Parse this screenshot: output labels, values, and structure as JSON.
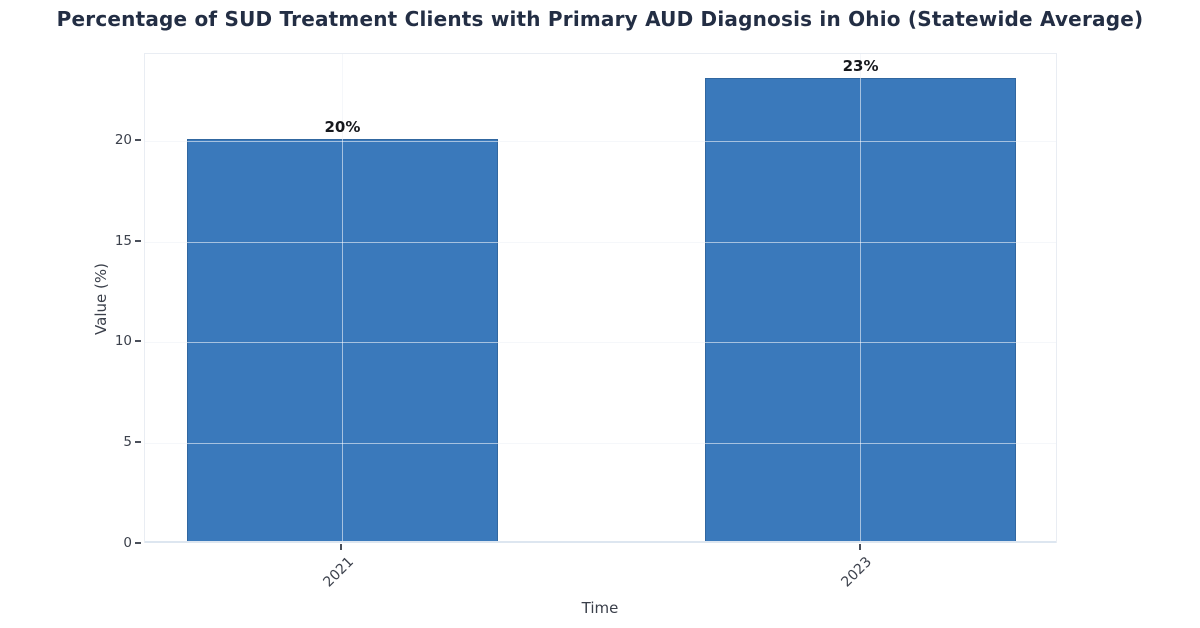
{
  "chart_data": {
    "type": "bar",
    "title": "Percentage of SUD Treatment Clients with Primary AUD Diagnosis in Ohio (Statewide Average)",
    "categories": [
      "2021",
      "2023"
    ],
    "values": [
      20,
      23
    ],
    "bar_labels": [
      "20%",
      "23%"
    ],
    "xlabel": "Time",
    "ylabel": "Value (%)",
    "ylim": [
      0,
      24.3
    ],
    "yticks": [
      0,
      5,
      10,
      15,
      20
    ],
    "xlim": [
      -0.381,
      1.381
    ],
    "bar_width_units": 0.6,
    "grid": true,
    "legend": "none",
    "colors": {
      "bar": "#3a79bb",
      "grid": "#e9edf3",
      "grid_over_bar": "rgba(255,255,255,0.55)",
      "baseline": "#dde6f0",
      "title": "#232e44",
      "tick_label": "#3c414c",
      "axis_label": "#3a3f4a",
      "value_label": "#16181d"
    }
  }
}
